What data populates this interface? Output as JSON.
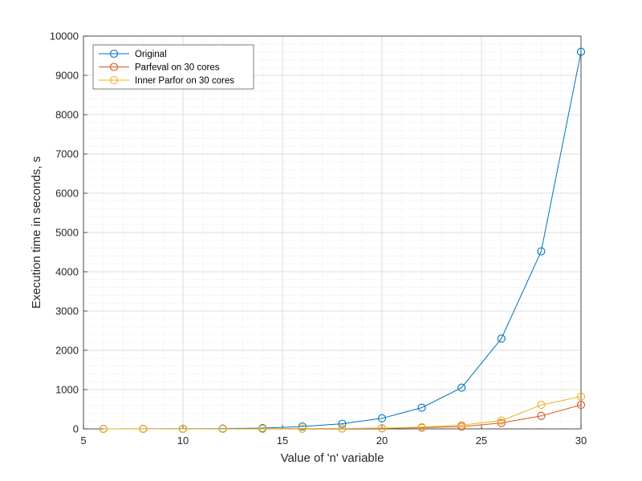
{
  "chart_data": {
    "type": "line",
    "title": "",
    "xlabel": "Value of 'n' variable",
    "ylabel": "Execution time in seconds, s",
    "xlim": [
      5,
      30
    ],
    "ylim": [
      0,
      10000
    ],
    "xticks": [
      5,
      10,
      15,
      20,
      25,
      30
    ],
    "yticks": [
      0,
      1000,
      2000,
      3000,
      4000,
      5000,
      6000,
      7000,
      8000,
      9000,
      10000
    ],
    "grid": true,
    "minor_grid": true,
    "legend_position": "top-left",
    "x": [
      6,
      8,
      10,
      12,
      14,
      16,
      18,
      20,
      22,
      24,
      26,
      28,
      30
    ],
    "series": [
      {
        "name": "Original",
        "color": "#0072BD",
        "marker": "circle",
        "values": [
          1,
          2,
          4,
          8,
          20,
          60,
          130,
          270,
          540,
          1050,
          2300,
          4520,
          9600
        ]
      },
      {
        "name": "Parfeval on 30 cores",
        "color": "#D95319",
        "marker": "circle",
        "values": [
          0,
          0,
          1,
          1,
          2,
          4,
          8,
          15,
          30,
          60,
          150,
          330,
          610
        ]
      },
      {
        "name": "Inner Parfor on 30 cores",
        "color": "#EDB120",
        "marker": "circle",
        "values": [
          0,
          0,
          1,
          1,
          3,
          5,
          10,
          20,
          45,
          95,
          210,
          610,
          820
        ]
      }
    ]
  }
}
